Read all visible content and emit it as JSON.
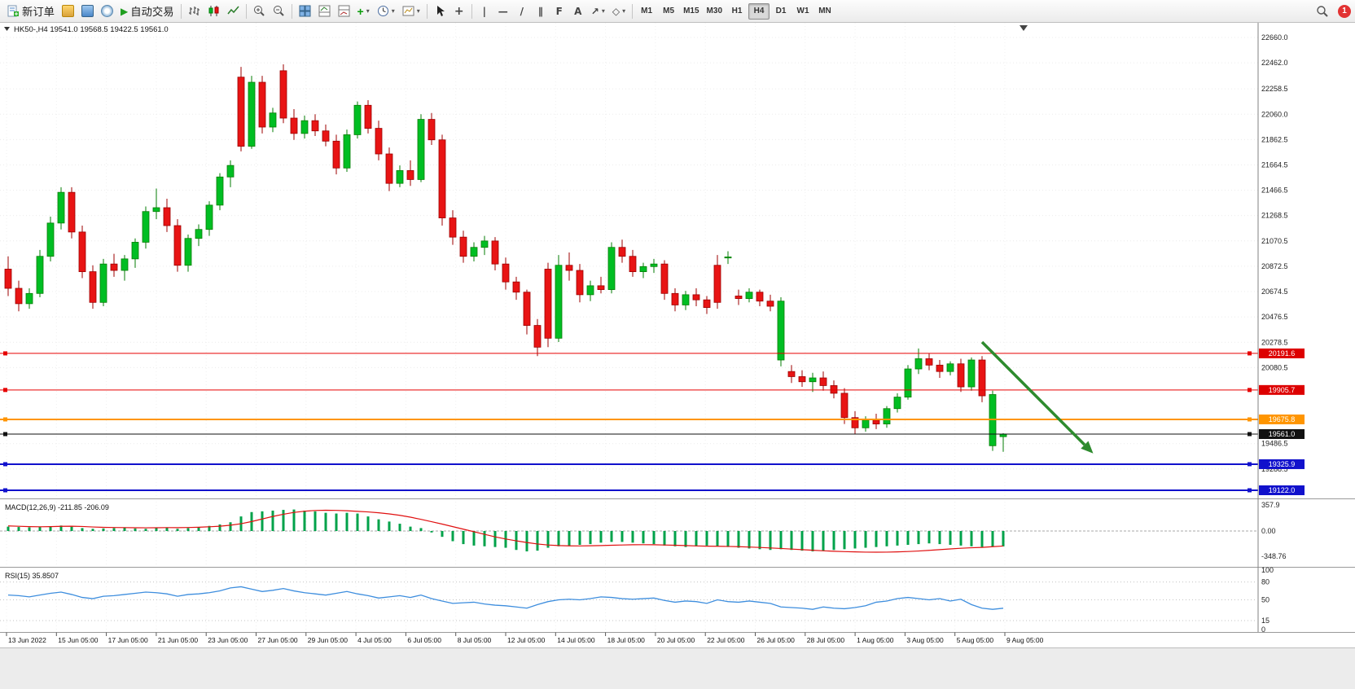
{
  "toolbar": {
    "new_order": "新订单",
    "auto_trading": "自动交易",
    "timeframes": [
      "M1",
      "M5",
      "M15",
      "M30",
      "H1",
      "H4",
      "D1",
      "W1",
      "MN"
    ],
    "active_timeframe": "H4",
    "notification_badge": "1"
  },
  "icons": {
    "vertical-line": "|",
    "horizontal-line": "—",
    "trendline": "/",
    "channel": "∥",
    "fibonacci": "F",
    "text-tool": "A",
    "arrow-tool": "↗",
    "shapes": "◇",
    "caret": "▾",
    "add": "+",
    "crosshair": "+"
  },
  "chart_data": {
    "type": "candlestick",
    "symbol": "HK50-",
    "period": "H4",
    "title": {
      "symbol": "HK50-,H4",
      "open": "19541.0",
      "high": "19568.5",
      "low": "19422.5",
      "close": "19561.0"
    },
    "price_axis_labels": [
      "22660.0",
      "22462.0",
      "22258.5",
      "22060.0",
      "21862.5",
      "21664.5",
      "21466.5",
      "21268.5",
      "21070.5",
      "20872.5",
      "20674.5",
      "20476.5",
      "20278.5",
      "20080.5",
      "19486.5",
      "19288.5"
    ],
    "hlines": [
      {
        "price": 20191.6,
        "label": "20191.6",
        "color": "#e60000",
        "badge_bg": "#dd0000",
        "badge_fg": "#ffffff",
        "thickness": 1
      },
      {
        "price": 19905.7,
        "label": "19905.7",
        "color": "#e60000",
        "badge_bg": "#dd0000",
        "badge_fg": "#ffffff",
        "thickness": 1
      },
      {
        "price": 19675.8,
        "label": "19675.8",
        "color": "#ff9500",
        "badge_bg": "#ff9500",
        "badge_fg": "#ffffff",
        "thickness": 2
      },
      {
        "price": 19561.0,
        "label": "19561.0",
        "color": "#111111",
        "badge_bg": "#111111",
        "badge_fg": "#ffffff",
        "thickness": 1
      },
      {
        "price": 19325.9,
        "label": "19325.9",
        "color": "#1111cc",
        "badge_bg": "#1111cc",
        "badge_fg": "#ffffff",
        "thickness": 2
      },
      {
        "price": 19122.0,
        "label": "19122.0",
        "color": "#1111cc",
        "badge_bg": "#1111cc",
        "badge_fg": "#ffffff",
        "thickness": 2
      }
    ],
    "arrow": {
      "x1_index": 92,
      "price1": 20280,
      "x2_index": 102.5,
      "price2": 19410,
      "color": "#2e8b2e"
    },
    "candles": [
      [
        20850,
        20950,
        20640,
        20700
      ],
      [
        20700,
        20760,
        20520,
        20580
      ],
      [
        20580,
        20700,
        20540,
        20660
      ],
      [
        20660,
        21000,
        20630,
        20950
      ],
      [
        20950,
        21260,
        20910,
        21210
      ],
      [
        21210,
        21490,
        21160,
        21450
      ],
      [
        21450,
        21490,
        21090,
        21140
      ],
      [
        21140,
        21190,
        20780,
        20830
      ],
      [
        20830,
        20880,
        20540,
        20590
      ],
      [
        20590,
        20930,
        20560,
        20890
      ],
      [
        20890,
        20970,
        20790,
        20840
      ],
      [
        20840,
        20960,
        20760,
        20930
      ],
      [
        20930,
        21090,
        20860,
        21060
      ],
      [
        21060,
        21340,
        21010,
        21300
      ],
      [
        21300,
        21480,
        21240,
        21330
      ],
      [
        21330,
        21400,
        21140,
        21190
      ],
      [
        21190,
        21240,
        20830,
        20880
      ],
      [
        20880,
        21120,
        20830,
        21090
      ],
      [
        21090,
        21200,
        21030,
        21160
      ],
      [
        21160,
        21380,
        21110,
        21350
      ],
      [
        21350,
        21600,
        21310,
        21570
      ],
      [
        21570,
        21700,
        21490,
        21660
      ],
      [
        22350,
        22430,
        21770,
        21810
      ],
      [
        21810,
        22360,
        21790,
        22310
      ],
      [
        22310,
        22360,
        21910,
        21960
      ],
      [
        21960,
        22110,
        21920,
        22070
      ],
      [
        22400,
        22450,
        21990,
        22030
      ],
      [
        22030,
        22100,
        21860,
        21910
      ],
      [
        21910,
        22050,
        21870,
        22010
      ],
      [
        22010,
        22060,
        21890,
        21930
      ],
      [
        21930,
        21980,
        21810,
        21850
      ],
      [
        21850,
        21900,
        21590,
        21640
      ],
      [
        21640,
        21940,
        21610,
        21900
      ],
      [
        21900,
        22160,
        21870,
        22130
      ],
      [
        22130,
        22170,
        21910,
        21950
      ],
      [
        21950,
        22010,
        21700,
        21750
      ],
      [
        21750,
        21800,
        21460,
        21520
      ],
      [
        21520,
        21660,
        21490,
        21620
      ],
      [
        21620,
        21700,
        21500,
        21550
      ],
      [
        21550,
        22060,
        21530,
        22020
      ],
      [
        22020,
        22070,
        21820,
        21860
      ],
      [
        21860,
        21900,
        21190,
        21250
      ],
      [
        21250,
        21310,
        21040,
        21100
      ],
      [
        21100,
        21150,
        20900,
        20950
      ],
      [
        20950,
        21060,
        20910,
        21020
      ],
      [
        21020,
        21110,
        20960,
        21070
      ],
      [
        21070,
        21100,
        20840,
        20890
      ],
      [
        20890,
        20940,
        20690,
        20750
      ],
      [
        20750,
        20790,
        20610,
        20670
      ],
      [
        20670,
        20690,
        20340,
        20410
      ],
      [
        20410,
        20460,
        20170,
        20240
      ],
      [
        20850,
        20900,
        20240,
        20310
      ],
      [
        20310,
        20960,
        20280,
        20880
      ],
      [
        20880,
        20980,
        20760,
        20840
      ],
      [
        20840,
        20890,
        20590,
        20650
      ],
      [
        20650,
        20760,
        20600,
        20720
      ],
      [
        20720,
        20790,
        20660,
        20690
      ],
      [
        20690,
        21060,
        20660,
        21020
      ],
      [
        21020,
        21080,
        20900,
        20950
      ],
      [
        20950,
        21000,
        20790,
        20830
      ],
      [
        20830,
        20900,
        20780,
        20870
      ],
      [
        20870,
        20930,
        20820,
        20890
      ],
      [
        20890,
        20920,
        20610,
        20660
      ],
      [
        20660,
        20700,
        20520,
        20570
      ],
      [
        20570,
        20680,
        20530,
        20650
      ],
      [
        20650,
        20700,
        20560,
        20610
      ],
      [
        20610,
        20640,
        20500,
        20550
      ],
      [
        20880,
        20960,
        20540,
        20590
      ],
      [
        20940,
        20990,
        20890,
        20945
      ],
      [
        20640,
        20690,
        20570,
        20620
      ],
      [
        20620,
        20700,
        20590,
        20670
      ],
      [
        20670,
        20690,
        20560,
        20600
      ],
      [
        20600,
        20650,
        20520,
        20560
      ],
      [
        20140,
        20630,
        20090,
        20600
      ],
      [
        20050,
        20100,
        19960,
        20010
      ],
      [
        20010,
        20060,
        19930,
        19970
      ],
      [
        19970,
        20040,
        19890,
        20000
      ],
      [
        20000,
        20050,
        19900,
        19940
      ],
      [
        19940,
        19980,
        19840,
        19880
      ],
      [
        19880,
        19920,
        19640,
        19690
      ],
      [
        19690,
        19740,
        19560,
        19610
      ],
      [
        19610,
        19700,
        19580,
        19670
      ],
      [
        19670,
        19720,
        19600,
        19640
      ],
      [
        19640,
        19780,
        19610,
        19760
      ],
      [
        19760,
        19880,
        19730,
        19850
      ],
      [
        19850,
        20100,
        19830,
        20070
      ],
      [
        20070,
        20230,
        20030,
        20150
      ],
      [
        20150,
        20190,
        20060,
        20100
      ],
      [
        20100,
        20140,
        20000,
        20050
      ],
      [
        20050,
        20130,
        20020,
        20110
      ],
      [
        20110,
        20150,
        19890,
        19930
      ],
      [
        19930,
        20160,
        19900,
        20140
      ],
      [
        20140,
        20170,
        19810,
        19860
      ],
      [
        19470,
        19900,
        19430,
        19870
      ],
      [
        19541,
        19568.5,
        19422.5,
        19561
      ]
    ],
    "macd": {
      "name": "MACD(12,26,9)",
      "values_label": "-211.85 -206.09",
      "axis_labels": [
        "357.9",
        "0.00",
        "-348.76"
      ],
      "hist": [
        60,
        55,
        50,
        55,
        65,
        75,
        60,
        40,
        30,
        35,
        40,
        45,
        35,
        30,
        40,
        50,
        30,
        40,
        55,
        70,
        90,
        120,
        200,
        260,
        270,
        280,
        290,
        295,
        280,
        270,
        250,
        240,
        250,
        240,
        200,
        160,
        130,
        100,
        60,
        40,
        -20,
        -80,
        -140,
        -180,
        -200,
        -210,
        -220,
        -230,
        -260,
        -280,
        -270,
        -230,
        -210,
        -200,
        -190,
        -180,
        -160,
        -150,
        -150,
        -160,
        -170,
        -180,
        -200,
        -210,
        -220,
        -210,
        -200,
        -210,
        -220,
        -230,
        -240,
        -250,
        -260,
        -250,
        -260,
        -270,
        -280,
        -270,
        -260,
        -250,
        -240,
        -230,
        -220,
        -210,
        -200,
        -190,
        -180,
        -170,
        -180,
        -190,
        -200,
        -210,
        -220,
        -215,
        -212
      ],
      "signal": [
        70,
        65,
        60,
        58,
        60,
        64,
        66,
        62,
        55,
        50,
        48,
        47,
        45,
        44,
        45,
        47,
        46,
        48,
        52,
        58,
        66,
        80,
        100,
        130,
        165,
        200,
        230,
        255,
        272,
        282,
        285,
        283,
        278,
        270,
        262,
        250,
        235,
        215,
        190,
        160,
        128,
        95,
        60,
        25,
        -10,
        -45,
        -80,
        -110,
        -135,
        -158,
        -178,
        -192,
        -200,
        -204,
        -205,
        -203,
        -200,
        -196,
        -192,
        -189,
        -188,
        -189,
        -192,
        -196,
        -200,
        -205,
        -208,
        -210,
        -212,
        -215,
        -220,
        -226,
        -233,
        -240,
        -248,
        -256,
        -264,
        -272,
        -278,
        -283,
        -287,
        -290,
        -291,
        -290,
        -287,
        -282,
        -275,
        -266,
        -256,
        -246,
        -237,
        -230,
        -225,
        -215,
        -206
      ]
    },
    "rsi": {
      "name": "RSI(15)",
      "value_label": "35.8507",
      "axis_labels": [
        "100",
        "80",
        "50",
        "15",
        "0"
      ],
      "levels": [
        80,
        50,
        15
      ],
      "values": [
        58,
        57,
        55,
        58,
        61,
        63,
        59,
        54,
        52,
        56,
        57,
        59,
        61,
        63,
        62,
        60,
        56,
        59,
        60,
        62,
        65,
        70,
        72,
        68,
        64,
        66,
        69,
        65,
        62,
        60,
        58,
        61,
        64,
        60,
        57,
        53,
        55,
        57,
        54,
        58,
        52,
        48,
        44,
        45,
        46,
        43,
        41,
        40,
        38,
        36,
        42,
        47,
        50,
        51,
        50,
        52,
        55,
        54,
        52,
        51,
        52,
        53,
        49,
        46,
        48,
        47,
        44,
        50,
        47,
        46,
        48,
        46,
        44,
        38,
        37,
        36,
        34,
        38,
        36,
        35,
        37,
        40,
        46,
        48,
        52,
        54,
        52,
        50,
        52,
        48,
        51,
        42,
        36,
        34,
        35.85
      ]
    },
    "time_labels": [
      "13 Jun 2022",
      "15 Jun 05:00",
      "17 Jun 05:00",
      "21 Jun 05:00",
      "23 Jun 05:00",
      "27 Jun 05:00",
      "29 Jun 05:00",
      "4 Jul 05:00",
      "6 Jul 05:00",
      "8 Jul 05:00",
      "12 Jul 05:00",
      "14 Jul 05:00",
      "18 Jul 05:00",
      "20 Jul 05:00",
      "22 Jul 05:00",
      "26 Jul 05:00",
      "28 Jul 05:00",
      "1 Aug 05:00",
      "3 Aug 05:00",
      "5 Aug 05:00",
      "9 Aug 05:00"
    ]
  }
}
